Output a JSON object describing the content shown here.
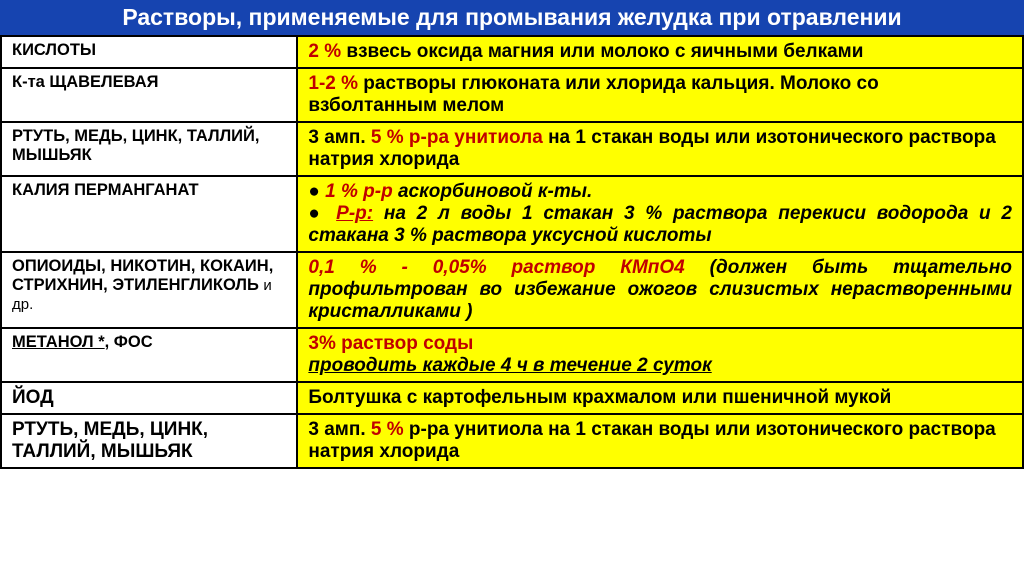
{
  "header": {
    "text": "Растворы, применяемые для промывания желудка при отравлении",
    "bg": "#1644b0",
    "color": "#ffffff",
    "fontsize": "23px"
  },
  "table": {
    "col2_bg": "#ffff00",
    "col1_fontsize": "16.5px",
    "col2_fontsize": "19px",
    "rows": [
      {
        "c1": [
          {
            "t": "КИСЛОТЫ"
          }
        ],
        "c2": [
          {
            "t": "2 % ",
            "red": true
          },
          {
            "t": "взвесь оксида магния или молоко с яичными белками"
          }
        ]
      },
      {
        "c1": [
          {
            "t": "К-та ЩАВЕЛЕВАЯ"
          }
        ],
        "c2": [
          {
            "t": "1-2 % ",
            "red": true
          },
          {
            "t": "растворы глюконата или хлорида кальция. Молоко со взболтанным мелом"
          }
        ]
      },
      {
        "c1": [
          {
            "t": "РТУТЬ, МЕДЬ, ЦИНК, ТАЛЛИЙ, МЫШЬЯК"
          }
        ],
        "c2": [
          {
            "t": "3 амп. "
          },
          {
            "t": "5 % ",
            "red": true
          },
          {
            "t": "р-ра унитиола ",
            "red": true
          },
          {
            "t": "на 1 стакан воды или изотонического раствора натрия хлорида"
          }
        ]
      },
      {
        "c1": [
          {
            "t": "КАЛИЯ ПЕРМАНГАНАТ"
          }
        ],
        "c2_justify": true,
        "c2_italic": true,
        "c2": [
          {
            "t": "● "
          },
          {
            "t": "1 % р-р ",
            "red": true
          },
          {
            "t": "аскорбиновой к-ты."
          },
          {
            "br": true
          },
          {
            "t": "● "
          },
          {
            "t": "Р-р:",
            "red": true,
            "underline": true
          },
          {
            "t": " на 2 л воды 1 стакан 3 % раствора перекиси водорода и 2 стакана 3 % раствора уксусной кислоты"
          }
        ]
      },
      {
        "c1": [
          {
            "t": "ОПИОИДЫ, НИКОТИН, КОКАИН, СТРИХНИН, ЭТИЛЕНГЛИКОЛЬ "
          },
          {
            "t": "и др.",
            "small": true
          }
        ],
        "c2_justify": true,
        "c2_italic": true,
        "c2": [
          {
            "t": "0,1 % - 0,05% раствор КМпО4 ",
            "red": true
          },
          {
            "t": "(должен быть тщательно профильтрован во избежание ожогов слизистых нерастворенными кристалликами )"
          }
        ]
      },
      {
        "c1": [
          {
            "t": "МЕТАНОЛ *",
            "underline": true
          },
          {
            "t": ", ФОС"
          }
        ],
        "c2": [
          {
            "t": "3% раствор соды",
            "red": true
          },
          {
            "br": true
          },
          {
            "t": "проводить каждые 4 ч в течение 2 суток",
            "italic": true,
            "underline": true
          }
        ]
      },
      {
        "c1": [
          {
            "t": "ЙОД"
          }
        ],
        "c1_fontsize": "19px",
        "c2": [
          {
            "t": "Болтушка с картофельным крахмалом или пшеничной мукой"
          }
        ]
      },
      {
        "c1": [
          {
            "t": "РТУТЬ, МЕДЬ, ЦИНК, ТАЛЛИЙ, МЫШЬЯК"
          }
        ],
        "c1_fontsize": "19px",
        "c2": [
          {
            "t": "3 амп. "
          },
          {
            "t": "5 % ",
            "red": true
          },
          {
            "t": "р-ра унитиола на 1 стакан воды или изотонического раствора натрия хлорида"
          }
        ]
      }
    ]
  }
}
